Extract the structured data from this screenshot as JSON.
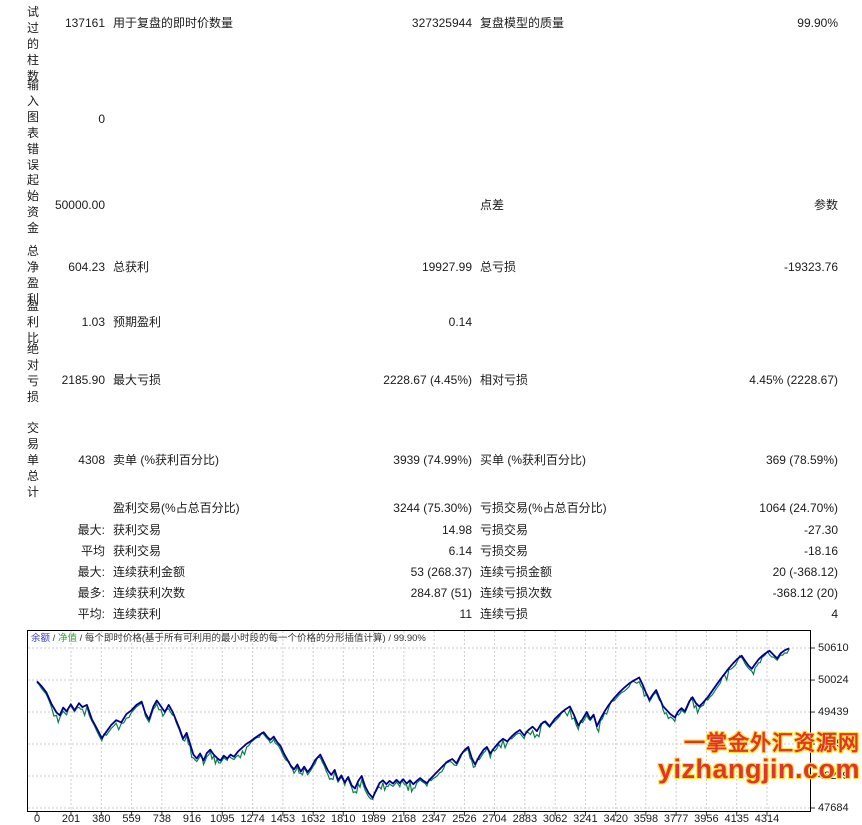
{
  "report": {
    "rows": [
      {
        "header": "试过的柱数",
        "v1": "137161",
        "l2": "用于复盘的即时价数量",
        "v3": "327325944",
        "l4": "复盘模型的质量",
        "v5": "99.90%"
      },
      {
        "header": "输入图表错误",
        "v1": "0"
      },
      {
        "header": "起始资金",
        "v1": "50000.00",
        "l4": "点差",
        "v5": "参数"
      },
      {
        "header": "总净盈利",
        "v1": "604.23",
        "l2": "总获利",
        "v3": "19927.99",
        "l4": "总亏损",
        "v5": "-19323.76"
      },
      {
        "header": "盈利比",
        "v1": "1.03",
        "l2": "预期盈利",
        "v3": "0.14"
      },
      {
        "header": "绝对亏损",
        "v1": "2185.90",
        "l2": "最大亏损",
        "v3": "2228.67 (4.45%)",
        "l4": "相对亏损",
        "v5": "4.45% (2228.67)"
      },
      {
        "header": "交易单总计",
        "v1": "4308",
        "l2": "卖单 (%获利百分比)",
        "v3": "3939 (74.99%)",
        "l4": "买单 (%获利百分比)",
        "v5": "369 (78.59%)"
      },
      {
        "l2": "盈利交易(%占总百分比)",
        "v3": "3244 (75.30%)",
        "l4": "亏损交易(%占总百分比)",
        "v5": "1064 (24.70%)"
      },
      {
        "v1": "最大:",
        "l2": "获利交易",
        "v3": "14.98",
        "l4": "亏损交易",
        "v5": "-27.30"
      },
      {
        "v1": "平均",
        "l2": "获利交易",
        "v3": "6.14",
        "l4": "亏损交易",
        "v5": "-18.16"
      },
      {
        "v1": "最大:",
        "l2": "连续获利金额",
        "v3": "53 (268.37)",
        "l4": "连续亏损金额",
        "v5": "20 (-368.12)"
      },
      {
        "v1": "最多:",
        "l2": "连续获利次数",
        "v3": "284.87 (51)",
        "l4": "连续亏损次数",
        "v5": "-368.12 (20)"
      },
      {
        "v1": "平均:",
        "l2": "连续获利",
        "v3": "11",
        "l4": "连续亏损",
        "v5": "4"
      }
    ]
  },
  "legend": {
    "balance_label": "余额",
    "equity_label": "净值",
    "separator": " / ",
    "description": "每个即时价格(基于所有可利用的最小时段的每一个价格的分形插值计算)",
    "quality": "99.90%"
  },
  "colors": {
    "balance_line": "#00008c",
    "equity_line": "#0a7f49",
    "legend_balance": "#3a3acc",
    "legend_equity": "#2ea52e",
    "grid": "#cdcdcd",
    "plot_border": "#000000",
    "watermark_fill": "#e0352b",
    "watermark_outline": "#ffe23d"
  },
  "watermark": {
    "line1": "一掌金外汇资源网",
    "line2": "yizhangjin.com"
  },
  "chart_data": {
    "type": "line",
    "title": "余额 / 净值 / 每个即时价格(基于所有可利用的最小时段的每一个价格的分形插值计算) / 99.90%",
    "xlabel": "",
    "ylabel": "",
    "xlim": [
      0,
      4460
    ],
    "ylim": [
      47684,
      50610
    ],
    "grid": true,
    "legend_position": "top-left",
    "x_ticks": [
      0,
      201,
      380,
      559,
      738,
      916,
      1095,
      1274,
      1453,
      1632,
      1810,
      1989,
      2168,
      2347,
      2526,
      2704,
      2883,
      3062,
      3241,
      3420,
      3598,
      3777,
      3956,
      4135,
      4314
    ],
    "y_ticks": [
      50610,
      50024,
      49439,
      48854,
      48269,
      47684
    ],
    "series": [
      {
        "name": "余额",
        "color": "#00008c",
        "points": [
          [
            0,
            50000
          ],
          [
            25,
            49920
          ],
          [
            55,
            49800
          ],
          [
            85,
            49590
          ],
          [
            115,
            49430
          ],
          [
            135,
            49380
          ],
          [
            155,
            49520
          ],
          [
            175,
            49450
          ],
          [
            200,
            49580
          ],
          [
            222,
            49470
          ],
          [
            248,
            49600
          ],
          [
            268,
            49530
          ],
          [
            295,
            49570
          ],
          [
            325,
            49300
          ],
          [
            355,
            49130
          ],
          [
            383,
            48960
          ],
          [
            410,
            49080
          ],
          [
            438,
            49200
          ],
          [
            468,
            49290
          ],
          [
            498,
            49250
          ],
          [
            528,
            49400
          ],
          [
            558,
            49470
          ],
          [
            588,
            49570
          ],
          [
            618,
            49630
          ],
          [
            640,
            49420
          ],
          [
            662,
            49300
          ],
          [
            688,
            49540
          ],
          [
            708,
            49650
          ],
          [
            733,
            49540
          ],
          [
            755,
            49440
          ],
          [
            778,
            49570
          ],
          [
            800,
            49450
          ],
          [
            820,
            49300
          ],
          [
            843,
            49130
          ],
          [
            863,
            48950
          ],
          [
            884,
            49060
          ],
          [
            904,
            48860
          ],
          [
            924,
            48660
          ],
          [
            944,
            48590
          ],
          [
            964,
            48680
          ],
          [
            984,
            48550
          ],
          [
            1004,
            48690
          ],
          [
            1024,
            48750
          ],
          [
            1044,
            48660
          ],
          [
            1064,
            48600
          ],
          [
            1084,
            48550
          ],
          [
            1104,
            48640
          ],
          [
            1124,
            48590
          ],
          [
            1144,
            48660
          ],
          [
            1164,
            48620
          ],
          [
            1189,
            48720
          ],
          [
            1214,
            48790
          ],
          [
            1239,
            48860
          ],
          [
            1264,
            48910
          ],
          [
            1289,
            48970
          ],
          [
            1314,
            49020
          ],
          [
            1339,
            49070
          ],
          [
            1359,
            48990
          ],
          [
            1379,
            48930
          ],
          [
            1399,
            48990
          ],
          [
            1419,
            48890
          ],
          [
            1439,
            48820
          ],
          [
            1459,
            48680
          ],
          [
            1479,
            48570
          ],
          [
            1499,
            48460
          ],
          [
            1519,
            48390
          ],
          [
            1539,
            48480
          ],
          [
            1559,
            48350
          ],
          [
            1579,
            48440
          ],
          [
            1599,
            48340
          ],
          [
            1619,
            48420
          ],
          [
            1644,
            48560
          ],
          [
            1674,
            48660
          ],
          [
            1699,
            48500
          ],
          [
            1719,
            48370
          ],
          [
            1739,
            48290
          ],
          [
            1759,
            48380
          ],
          [
            1779,
            48190
          ],
          [
            1799,
            48280
          ],
          [
            1819,
            48150
          ],
          [
            1839,
            48250
          ],
          [
            1859,
            48100
          ],
          [
            1879,
            48040
          ],
          [
            1899,
            48180
          ],
          [
            1919,
            48270
          ],
          [
            1939,
            48080
          ],
          [
            1959,
            47960
          ],
          [
            1984,
            47870
          ],
          [
            2004,
            48010
          ],
          [
            2024,
            48140
          ],
          [
            2044,
            48190
          ],
          [
            2064,
            48120
          ],
          [
            2084,
            48180
          ],
          [
            2104,
            48130
          ],
          [
            2124,
            48200
          ],
          [
            2144,
            48140
          ],
          [
            2164,
            48210
          ],
          [
            2184,
            48130
          ],
          [
            2204,
            48190
          ],
          [
            2224,
            48120
          ],
          [
            2244,
            48180
          ],
          [
            2264,
            48230
          ],
          [
            2284,
            48180
          ],
          [
            2304,
            48140
          ],
          [
            2329,
            48230
          ],
          [
            2354,
            48310
          ],
          [
            2379,
            48390
          ],
          [
            2404,
            48470
          ],
          [
            2429,
            48540
          ],
          [
            2454,
            48580
          ],
          [
            2479,
            48500
          ],
          [
            2504,
            48650
          ],
          [
            2529,
            48750
          ],
          [
            2549,
            48800
          ],
          [
            2569,
            48600
          ],
          [
            2589,
            48480
          ],
          [
            2614,
            48630
          ],
          [
            2639,
            48750
          ],
          [
            2659,
            48800
          ],
          [
            2679,
            48680
          ],
          [
            2704,
            48790
          ],
          [
            2729,
            48880
          ],
          [
            2754,
            48950
          ],
          [
            2779,
            48900
          ],
          [
            2804,
            48990
          ],
          [
            2829,
            49060
          ],
          [
            2854,
            49110
          ],
          [
            2879,
            49010
          ],
          [
            2904,
            49110
          ],
          [
            2929,
            49170
          ],
          [
            2954,
            49090
          ],
          [
            2979,
            49220
          ],
          [
            3004,
            49270
          ],
          [
            3029,
            49180
          ],
          [
            3059,
            49310
          ],
          [
            3089,
            49400
          ],
          [
            3119,
            49480
          ],
          [
            3149,
            49540
          ],
          [
            3174,
            49380
          ],
          [
            3199,
            49190
          ],
          [
            3224,
            49310
          ],
          [
            3249,
            49440
          ],
          [
            3269,
            49310
          ],
          [
            3289,
            49390
          ],
          [
            3309,
            49180
          ],
          [
            3329,
            49310
          ],
          [
            3354,
            49450
          ],
          [
            3379,
            49570
          ],
          [
            3409,
            49690
          ],
          [
            3439,
            49790
          ],
          [
            3469,
            49880
          ],
          [
            3499,
            49960
          ],
          [
            3529,
            50020
          ],
          [
            3559,
            50070
          ],
          [
            3579,
            49940
          ],
          [
            3599,
            49790
          ],
          [
            3619,
            49660
          ],
          [
            3639,
            49760
          ],
          [
            3659,
            49840
          ],
          [
            3679,
            49690
          ],
          [
            3699,
            49550
          ],
          [
            3719,
            49480
          ],
          [
            3744,
            49400
          ],
          [
            3769,
            49340
          ],
          [
            3789,
            49450
          ],
          [
            3809,
            49510
          ],
          [
            3829,
            49450
          ],
          [
            3854,
            49630
          ],
          [
            3874,
            49710
          ],
          [
            3894,
            49600
          ],
          [
            3914,
            49540
          ],
          [
            3939,
            49620
          ],
          [
            3964,
            49710
          ],
          [
            3989,
            49820
          ],
          [
            4014,
            49930
          ],
          [
            4039,
            50040
          ],
          [
            4064,
            50140
          ],
          [
            4089,
            50240
          ],
          [
            4114,
            50330
          ],
          [
            4139,
            50410
          ],
          [
            4164,
            50470
          ],
          [
            4184,
            50380
          ],
          [
            4204,
            50290
          ],
          [
            4224,
            50230
          ],
          [
            4244,
            50320
          ],
          [
            4264,
            50400
          ],
          [
            4284,
            50460
          ],
          [
            4304,
            50510
          ],
          [
            4329,
            50560
          ],
          [
            4354,
            50480
          ],
          [
            4374,
            50420
          ],
          [
            4394,
            50510
          ],
          [
            4419,
            50570
          ],
          [
            4445,
            50604
          ]
        ]
      },
      {
        "name": "净值",
        "color": "#0a7f49",
        "style": "follows_balance_with_downward_spikes"
      }
    ]
  }
}
